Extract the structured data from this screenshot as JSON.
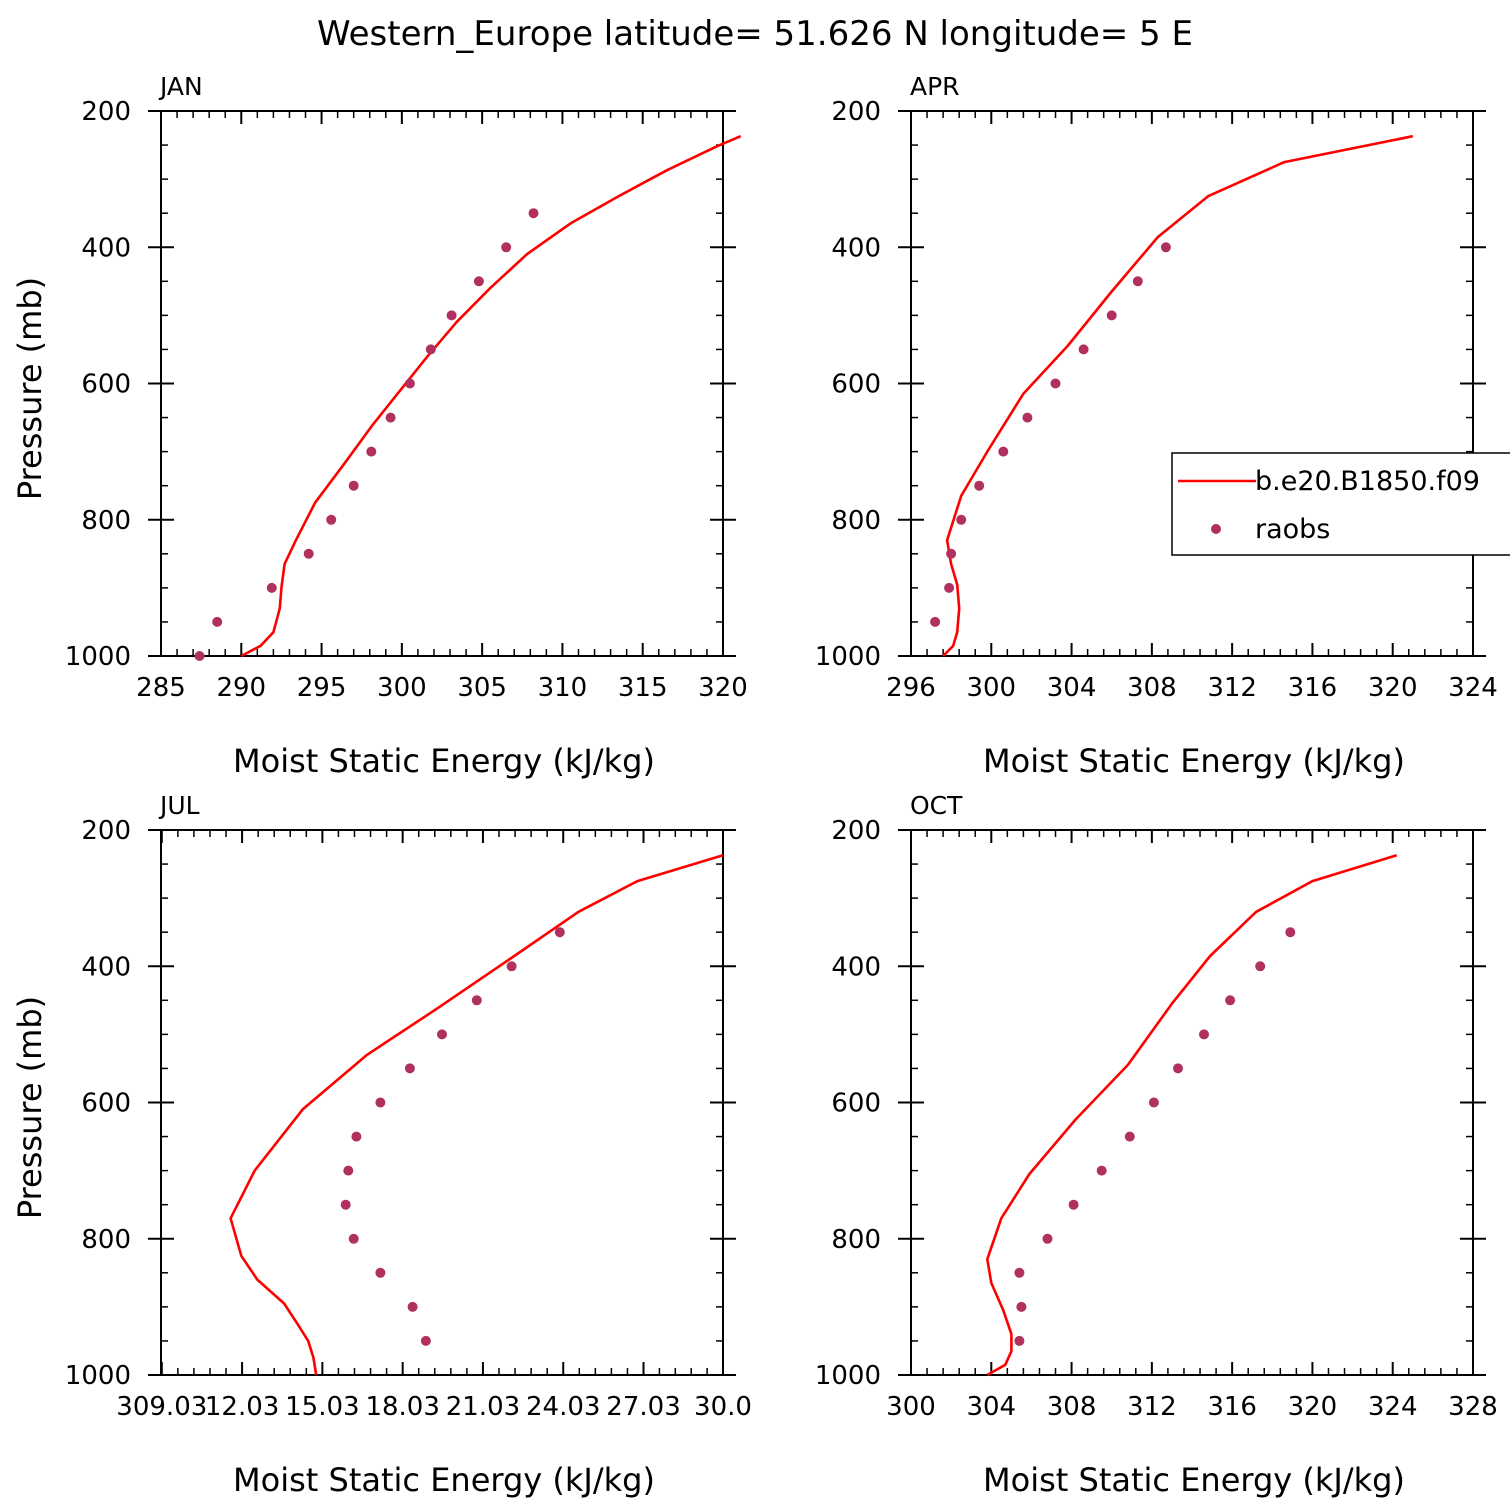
{
  "title": "Western_Europe  latitude= 51.626 N longitude= 5 E",
  "colors": {
    "model": "#ff0000",
    "obs": "#b03060",
    "axis": "#000000"
  },
  "legend": {
    "model_label": "b.e20.B1850.f09",
    "obs_label": "raobs",
    "placement": "right of APR panel"
  },
  "chart_data": [
    {
      "type": "line",
      "panel": "JAN",
      "xlabel": "Moist Static Energy (kJ/kg)",
      "ylabel": "Pressure (mb)",
      "xlim": [
        285,
        320
      ],
      "ylim": [
        1000,
        200
      ],
      "xticks": [
        285,
        290,
        295,
        300,
        305,
        310,
        315,
        320
      ],
      "xtick_labels": [
        "285",
        "290",
        "295",
        "300",
        "305",
        "310",
        "315",
        "320"
      ],
      "yticks": [
        200,
        400,
        600,
        800,
        1000
      ],
      "ytick_labels": [
        "200",
        "400",
        "600",
        "800",
        "1000"
      ],
      "series": [
        {
          "name": "b.e20.B1850.f09",
          "style": "line",
          "points": [
            [
              290.0,
              1000
            ],
            [
              291.2,
              985
            ],
            [
              292.0,
              965
            ],
            [
              292.4,
              930
            ],
            [
              292.5,
              900
            ],
            [
              292.7,
              865
            ],
            [
              293.4,
              830
            ],
            [
              294.6,
              775
            ],
            [
              296.5,
              715
            ],
            [
              298.2,
              660
            ],
            [
              299.9,
              610
            ],
            [
              301.6,
              560
            ],
            [
              303.4,
              510
            ],
            [
              305.5,
              460
            ],
            [
              307.8,
              410
            ],
            [
              310.5,
              365
            ],
            [
              313.5,
              325
            ],
            [
              316.5,
              287
            ],
            [
              319.6,
              252
            ],
            [
              321.1,
              237
            ]
          ]
        },
        {
          "name": "raobs",
          "style": "markers",
          "points": [
            [
              287.4,
              1000
            ],
            [
              288.5,
              950
            ],
            [
              291.9,
              900
            ],
            [
              294.2,
              850
            ],
            [
              295.6,
              800
            ],
            [
              297.0,
              750
            ],
            [
              298.1,
              700
            ],
            [
              299.3,
              650
            ],
            [
              300.5,
              600
            ],
            [
              301.8,
              550
            ],
            [
              303.1,
              500
            ],
            [
              304.8,
              450
            ],
            [
              306.5,
              400
            ],
            [
              308.2,
              350
            ]
          ]
        }
      ]
    },
    {
      "type": "line",
      "panel": "APR",
      "xlabel": "Moist Static Energy (kJ/kg)",
      "ylabel": "",
      "xlim": [
        296,
        324
      ],
      "ylim": [
        1000,
        200
      ],
      "xticks": [
        296,
        300,
        304,
        308,
        312,
        316,
        320,
        324
      ],
      "xtick_labels": [
        "296",
        "300",
        "304",
        "308",
        "312",
        "316",
        "320",
        "324"
      ],
      "yticks": [
        200,
        400,
        600,
        800,
        1000
      ],
      "ytick_labels": [
        "200",
        "400",
        "600",
        "800",
        "1000"
      ],
      "series": [
        {
          "name": "b.e20.B1850.f09",
          "style": "line",
          "points": [
            [
              297.6,
              1000
            ],
            [
              298.1,
              985
            ],
            [
              298.3,
              965
            ],
            [
              298.4,
              930
            ],
            [
              298.3,
              895
            ],
            [
              298.0,
              865
            ],
            [
              297.8,
              830
            ],
            [
              298.5,
              765
            ],
            [
              299.8,
              700
            ],
            [
              301.6,
              615
            ],
            [
              303.8,
              545
            ],
            [
              306.0,
              465
            ],
            [
              308.3,
              385
            ],
            [
              310.8,
              325
            ],
            [
              314.6,
              275
            ],
            [
              321.0,
              237
            ]
          ]
        },
        {
          "name": "raobs",
          "style": "markers",
          "points": [
            [
              297.2,
              950
            ],
            [
              297.9,
              900
            ],
            [
              298.0,
              850
            ],
            [
              298.5,
              800
            ],
            [
              299.4,
              750
            ],
            [
              300.6,
              700
            ],
            [
              301.8,
              650
            ],
            [
              303.2,
              600
            ],
            [
              304.6,
              550
            ],
            [
              306.0,
              500
            ],
            [
              307.3,
              450
            ],
            [
              308.7,
              400
            ]
          ]
        }
      ]
    },
    {
      "type": "line",
      "panel": "JUL",
      "xlabel": "Moist Static Energy (kJ/kg)",
      "ylabel": "Pressure (mb)",
      "xlim": [
        309.0,
        330.0
      ],
      "ylim": [
        1000,
        200
      ],
      "xticks": [
        309.03,
        312.03,
        315.03,
        318.03,
        321.03,
        324.03,
        327.03,
        330.0
      ],
      "xtick_labels": [
        "309.03",
        "12.03",
        "15.03",
        "18.03",
        "21.03",
        "24.03",
        "27.03",
        "30.0"
      ],
      "yticks": [
        200,
        400,
        600,
        800,
        1000
      ],
      "ytick_labels": [
        "200",
        "400",
        "600",
        "800",
        "1000"
      ],
      "series": [
        {
          "name": "b.e20.B1850.f09",
          "style": "line",
          "points": [
            [
              314.8,
              1000
            ],
            [
              314.7,
              975
            ],
            [
              314.5,
              950
            ],
            [
              314.1,
              925
            ],
            [
              313.6,
              895
            ],
            [
              312.6,
              860
            ],
            [
              312.0,
              825
            ],
            [
              311.6,
              770
            ],
            [
              312.5,
              700
            ],
            [
              314.3,
              610
            ],
            [
              316.7,
              530
            ],
            [
              319.4,
              460
            ],
            [
              322.2,
              385
            ],
            [
              324.6,
              320
            ],
            [
              326.8,
              275
            ],
            [
              330.0,
              237
            ]
          ]
        },
        {
          "name": "raobs",
          "style": "markers",
          "points": [
            [
              318.9,
              950
            ],
            [
              318.4,
              900
            ],
            [
              317.2,
              850
            ],
            [
              316.2,
              800
            ],
            [
              315.9,
              750
            ],
            [
              316.0,
              700
            ],
            [
              316.3,
              650
            ],
            [
              317.2,
              600
            ],
            [
              318.3,
              550
            ],
            [
              319.5,
              500
            ],
            [
              320.8,
              450
            ],
            [
              322.1,
              400
            ],
            [
              323.9,
              350
            ]
          ]
        }
      ]
    },
    {
      "type": "line",
      "panel": "OCT",
      "xlabel": "Moist Static Energy (kJ/kg)",
      "ylabel": "",
      "xlim": [
        300,
        328
      ],
      "ylim": [
        1000,
        200
      ],
      "xticks": [
        300,
        304,
        308,
        312,
        316,
        320,
        324,
        328
      ],
      "xtick_labels": [
        "300",
        "304",
        "308",
        "312",
        "316",
        "320",
        "324",
        "328"
      ],
      "yticks": [
        200,
        400,
        600,
        800,
        1000
      ],
      "ytick_labels": [
        "200",
        "400",
        "600",
        "800",
        "1000"
      ],
      "series": [
        {
          "name": "b.e20.B1850.f09",
          "style": "line",
          "points": [
            [
              303.8,
              1000
            ],
            [
              304.7,
              985
            ],
            [
              305.0,
              965
            ],
            [
              305.0,
              940
            ],
            [
              304.6,
              905
            ],
            [
              304.0,
              865
            ],
            [
              303.8,
              830
            ],
            [
              304.5,
              770
            ],
            [
              305.9,
              705
            ],
            [
              308.2,
              625
            ],
            [
              310.8,
              545
            ],
            [
              313.0,
              455
            ],
            [
              314.9,
              385
            ],
            [
              317.2,
              320
            ],
            [
              320.0,
              275
            ],
            [
              324.2,
              237
            ]
          ]
        },
        {
          "name": "raobs",
          "style": "markers",
          "points": [
            [
              305.4,
              950
            ],
            [
              305.5,
              900
            ],
            [
              305.4,
              850
            ],
            [
              306.8,
              800
            ],
            [
              308.1,
              750
            ],
            [
              309.5,
              700
            ],
            [
              310.9,
              650
            ],
            [
              312.1,
              600
            ],
            [
              313.3,
              550
            ],
            [
              314.6,
              500
            ],
            [
              315.9,
              450
            ],
            [
              317.4,
              400
            ],
            [
              318.9,
              350
            ]
          ]
        }
      ]
    }
  ]
}
